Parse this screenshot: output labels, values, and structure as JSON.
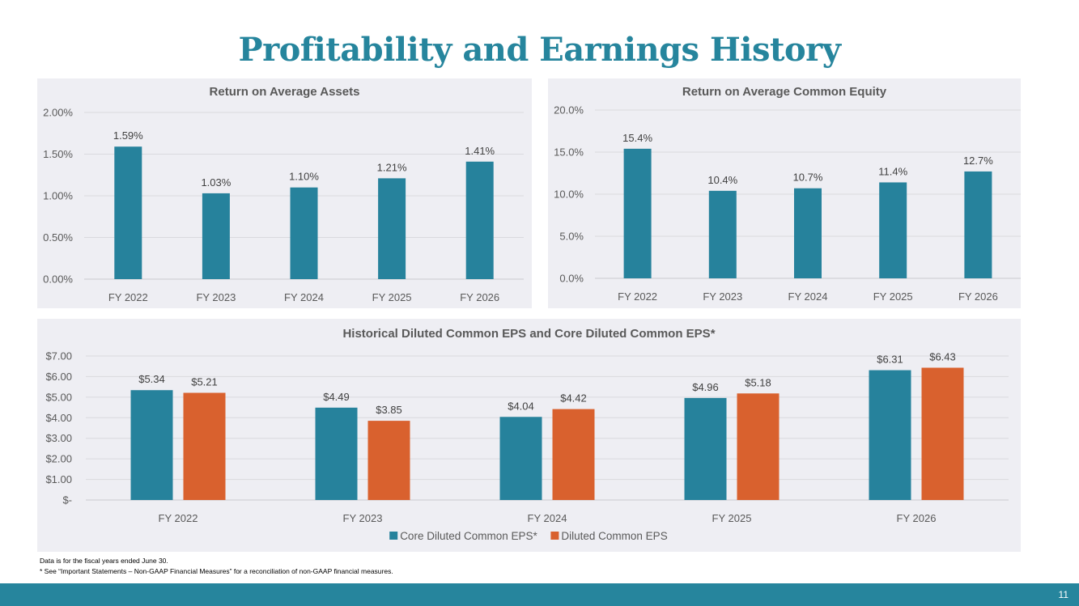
{
  "page": {
    "title": "Profitability and Earnings History",
    "footnote_1": "Data is for the fiscal years ended June 30.",
    "footnote_2": "* See “Important Statements – Non-GAAP Financial Measures” for a reconciliation of non-GAAP financial measures.",
    "page_number": "11"
  },
  "colors": {
    "teal": "#26829c",
    "orange": "#d9612e",
    "title": "#26859d",
    "panel_bg": "#eeeef3"
  },
  "chart_data": [
    {
      "type": "bar",
      "title": "Return on Average Assets",
      "categories": [
        "FY 2022",
        "FY 2023",
        "FY 2024",
        "FY 2025",
        "FY 2026"
      ],
      "series": [
        {
          "values": [
            1.59,
            1.03,
            1.1,
            1.21,
            1.41
          ],
          "labels": [
            "1.59%",
            "1.03%",
            "1.10%",
            "1.21%",
            "1.41%"
          ],
          "color": "#26829c"
        }
      ],
      "ylim": [
        0,
        2
      ],
      "yticks": [
        0,
        0.5,
        1,
        1.5,
        2
      ],
      "ytick_labels": [
        "0.00%",
        "0.50%",
        "1.00%",
        "1.50%",
        "2.00%"
      ],
      "grid": true,
      "legend": "none"
    },
    {
      "type": "bar",
      "title": "Return on Average Common Equity",
      "categories": [
        "FY 2022",
        "FY 2023",
        "FY 2024",
        "FY 2025",
        "FY 2026"
      ],
      "series": [
        {
          "values": [
            15.4,
            10.4,
            10.7,
            11.4,
            12.7
          ],
          "labels": [
            "15.4%",
            "10.4%",
            "10.7%",
            "11.4%",
            "12.7%"
          ],
          "color": "#26829c"
        }
      ],
      "ylim": [
        0,
        20
      ],
      "yticks": [
        0,
        5,
        10,
        15,
        20
      ],
      "ytick_labels": [
        "0.0%",
        "5.0%",
        "10.0%",
        "15.0%",
        "20.0%"
      ],
      "grid": true,
      "legend": "none"
    },
    {
      "type": "bar",
      "title": "Historical Diluted Common EPS and Core Diluted Common EPS*",
      "categories": [
        "FY 2022",
        "FY 2023",
        "FY 2024",
        "FY 2025",
        "FY 2026"
      ],
      "series": [
        {
          "name": "Core Diluted Common EPS*",
          "values": [
            5.34,
            4.49,
            4.04,
            4.96,
            6.31
          ],
          "labels": [
            "$5.34",
            "$4.49",
            "$4.04",
            "$4.96",
            "$6.31"
          ],
          "color": "#26829c"
        },
        {
          "name": "Diluted Common EPS",
          "values": [
            5.21,
            3.85,
            4.42,
            5.18,
            6.43
          ],
          "labels": [
            "$5.21",
            "$3.85",
            "$4.42",
            "$5.18",
            "$6.43"
          ],
          "color": "#d9612e"
        }
      ],
      "ylim": [
        0,
        7
      ],
      "yticks": [
        0,
        1,
        2,
        3,
        4,
        5,
        6,
        7
      ],
      "ytick_labels": [
        "$-",
        "$1.00",
        "$2.00",
        "$3.00",
        "$4.00",
        "$5.00",
        "$6.00",
        "$7.00"
      ],
      "grid": true,
      "legend": "bottom-center"
    }
  ]
}
